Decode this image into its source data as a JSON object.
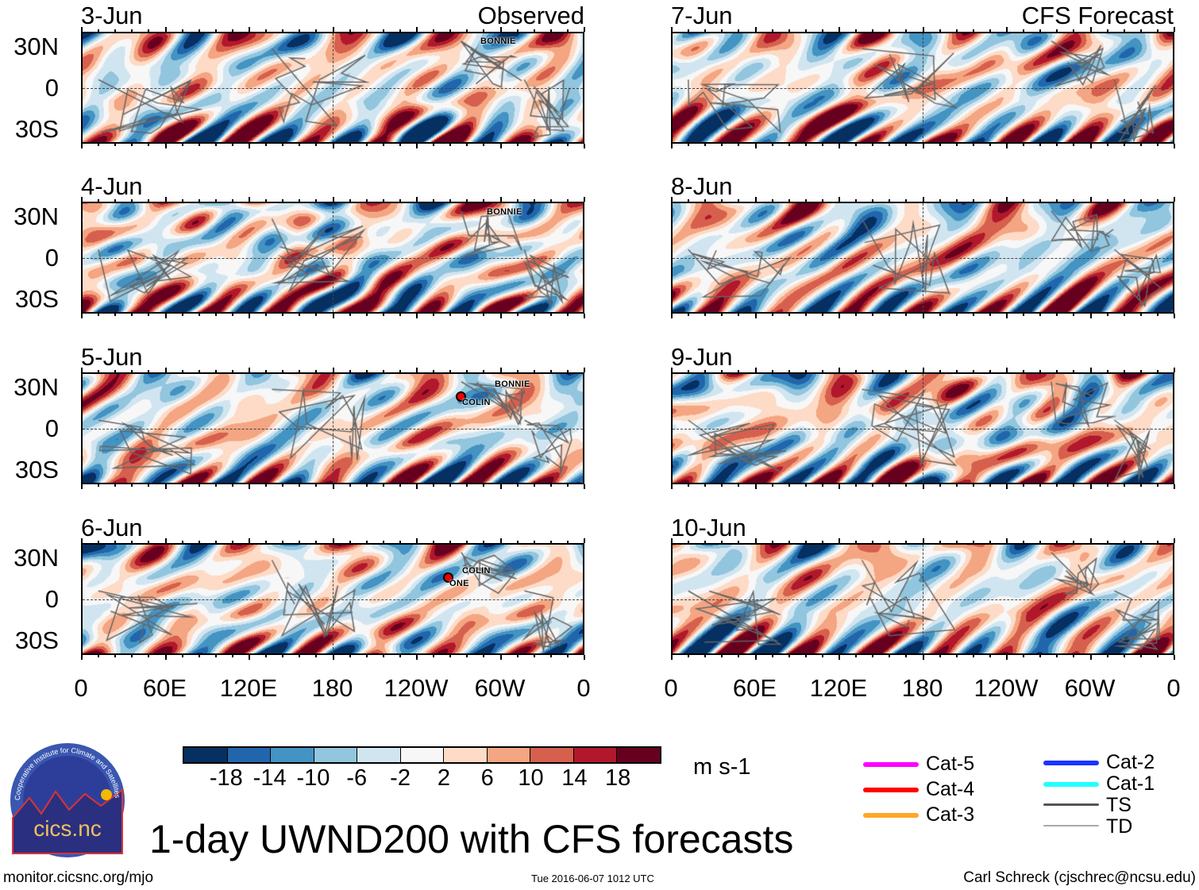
{
  "panels_left": [
    {
      "date": "3-Jun",
      "source": "Observed",
      "storms": [
        {
          "name": "BONNIE"
        }
      ]
    },
    {
      "date": "4-Jun",
      "storms": [
        {
          "name": "BONNIE"
        }
      ]
    },
    {
      "date": "5-Jun",
      "storms": [
        {
          "name": "BONNIE"
        },
        {
          "name": "COLIN"
        }
      ]
    },
    {
      "date": "6-Jun",
      "storms": [
        {
          "name": "COLIN"
        },
        {
          "name": "ONE"
        }
      ]
    }
  ],
  "panels_right": [
    {
      "date": "7-Jun",
      "source": "CFS Forecast"
    },
    {
      "date": "8-Jun"
    },
    {
      "date": "9-Jun"
    },
    {
      "date": "10-Jun"
    }
  ],
  "lat_labels": [
    "30N",
    "0",
    "30S"
  ],
  "lon_labels": [
    "0",
    "60E",
    "120E",
    "180",
    "120W",
    "60W",
    "0"
  ],
  "colorbar": {
    "colors": [
      "#053061",
      "#2166ac",
      "#4393c3",
      "#92c5de",
      "#d1e5f0",
      "#f7f7f7",
      "#fddbc7",
      "#f4a582",
      "#d6604d",
      "#b2182b",
      "#67001f"
    ],
    "labels": [
      "-18",
      "-14",
      "-10",
      "-6",
      "-2",
      "2",
      "6",
      "10",
      "14",
      "18"
    ],
    "units": "m s-1"
  },
  "legend": [
    {
      "label": "Cat-5",
      "color": "#ff00ff"
    },
    {
      "label": "Cat-4",
      "color": "#ff0000"
    },
    {
      "label": "Cat-3",
      "color": "#ffa726"
    },
    {
      "label": "Cat-2",
      "color": "#1a33ff"
    },
    {
      "label": "Cat-1",
      "color": "#22ffff"
    },
    {
      "label": "TS",
      "color": "#555555"
    },
    {
      "label": "TD",
      "color": "#aaaaaa"
    }
  ],
  "logo": {
    "text": "cics.nc",
    "ring_text": "Cooperative Institute for Climate and Satellites"
  },
  "title": "1-day UWND200 with CFS forecasts",
  "footer": {
    "url": "monitor.cicsnc.org/mjo",
    "timestamp": "Tue 2016-06-07 1012 UTC",
    "author": "Carl Schreck (cjschrec@ncsu.edu)"
  }
}
